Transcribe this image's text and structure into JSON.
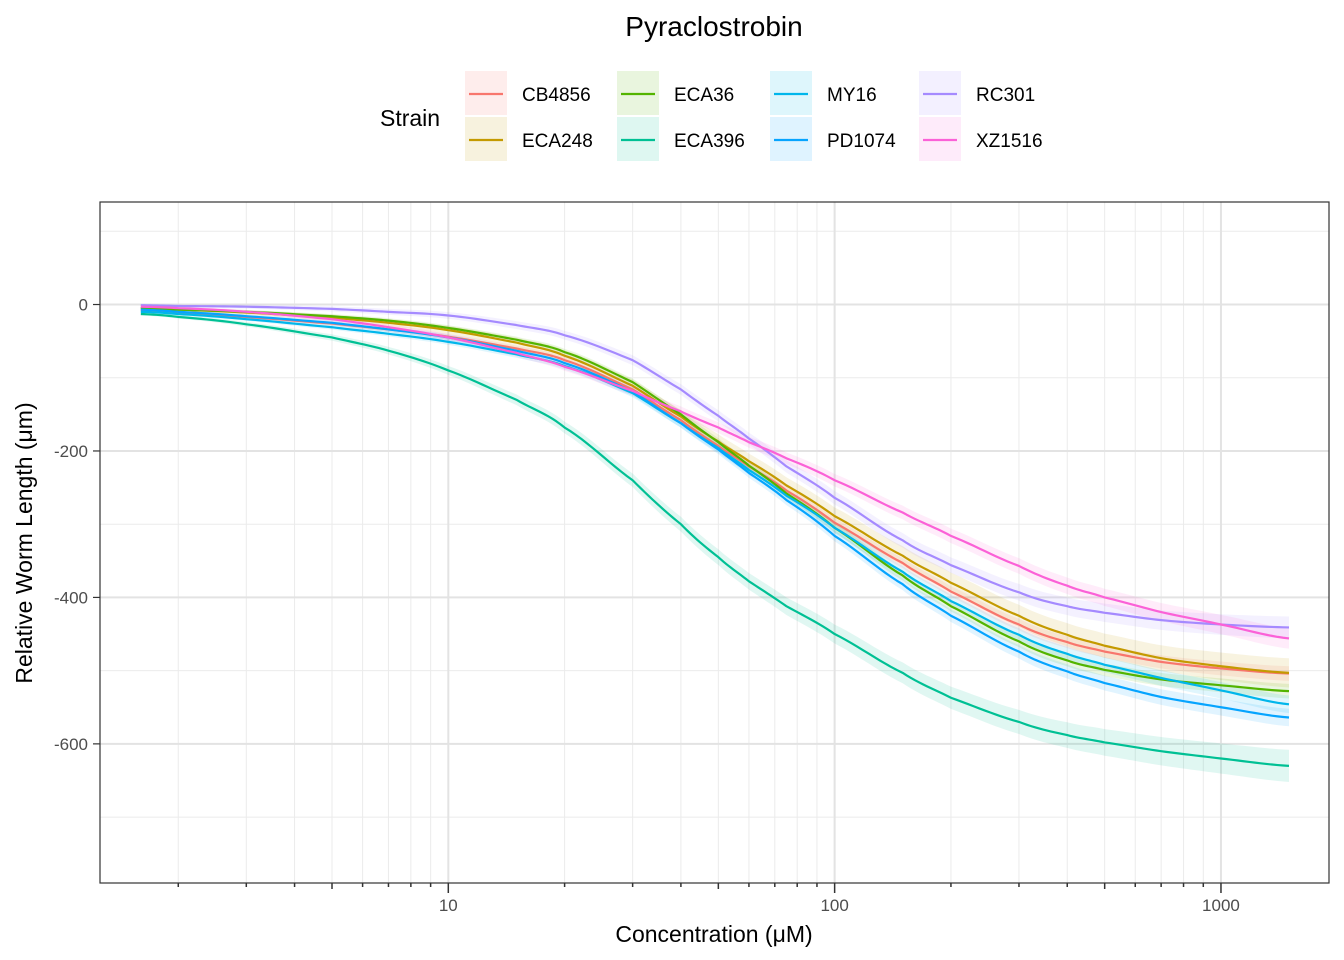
{
  "chart_data": {
    "type": "line",
    "title": "Pyraclostrobin",
    "xlabel": "Concentration (μM)",
    "ylabel": "Relative Worm Length (μm)",
    "x_scale": "log10",
    "xlim": [
      1.5,
      1500
    ],
    "ylim": [
      -790,
      140
    ],
    "x_ticks": [
      10,
      100,
      1000
    ],
    "x_tick_labels": [
      "10",
      "100",
      "1000"
    ],
    "y_ticks": [
      0,
      -200,
      -400,
      -600
    ],
    "y_tick_labels": [
      "0",
      "-200",
      "-400",
      "-600"
    ],
    "grid": true,
    "legend": {
      "title": "Strain",
      "position": "top",
      "ncol": 4
    },
    "x": [
      1.6,
      2,
      3,
      5,
      7,
      10,
      15,
      20,
      30,
      40,
      50,
      60,
      75,
      100,
      150,
      200,
      300,
      400,
      500,
      700,
      1000,
      1500
    ],
    "series": [
      {
        "name": "CB4856",
        "color": "#F8766D",
        "values": [
          -8,
          -11,
          -17,
          -26,
          -34,
          -44,
          -60,
          -76,
          -116,
          -158,
          -193,
          -221,
          -254,
          -298,
          -353,
          -392,
          -437,
          -461,
          -474,
          -488,
          -497,
          -504
        ],
        "ci_halfwidth": 10
      },
      {
        "name": "ECA248",
        "color": "#C49A00",
        "values": [
          -5,
          -7,
          -11,
          -18,
          -25,
          -35,
          -52,
          -70,
          -111,
          -153,
          -187,
          -214,
          -247,
          -289,
          -343,
          -380,
          -425,
          -451,
          -466,
          -483,
          -494,
          -503
        ],
        "ci_halfwidth": 20
      },
      {
        "name": "ECA36",
        "color": "#53B400",
        "values": [
          -5,
          -7,
          -10,
          -16,
          -22,
          -32,
          -48,
          -65,
          -106,
          -150,
          -188,
          -220,
          -258,
          -305,
          -370,
          -412,
          -460,
          -486,
          -499,
          -512,
          -520,
          -528
        ],
        "ci_halfwidth": 10
      },
      {
        "name": "ECA396",
        "color": "#00C094",
        "values": [
          -13,
          -17,
          -27,
          -45,
          -63,
          -90,
          -130,
          -168,
          -240,
          -300,
          -345,
          -378,
          -412,
          -450,
          -503,
          -537,
          -570,
          -588,
          -598,
          -610,
          -620,
          -630
        ],
        "ci_halfwidth": 22
      },
      {
        "name": "MY16",
        "color": "#00B6EB",
        "values": [
          -10,
          -13,
          -20,
          -31,
          -40,
          -51,
          -68,
          -84,
          -121,
          -162,
          -196,
          -226,
          -261,
          -305,
          -365,
          -405,
          -451,
          -477,
          -492,
          -510,
          -527,
          -546
        ],
        "ci_halfwidth": 12
      },
      {
        "name": "PD1074",
        "color": "#06A4FF",
        "values": [
          -7,
          -10,
          -16,
          -25,
          -34,
          -45,
          -63,
          -80,
          -119,
          -162,
          -198,
          -230,
          -267,
          -316,
          -382,
          -425,
          -474,
          -501,
          -517,
          -536,
          -550,
          -564
        ],
        "ci_halfwidth": 12
      },
      {
        "name": "RC301",
        "color": "#A58AFF",
        "values": [
          -1,
          -2,
          -3,
          -6,
          -10,
          -15,
          -28,
          -42,
          -76,
          -116,
          -152,
          -183,
          -221,
          -264,
          -322,
          -356,
          -393,
          -412,
          -421,
          -431,
          -437,
          -441
        ],
        "ci_halfwidth": 15
      },
      {
        "name": "XZ1516",
        "color": "#FB61D7",
        "values": [
          -3,
          -5,
          -10,
          -20,
          -31,
          -45,
          -66,
          -85,
          -118,
          -146,
          -168,
          -188,
          -210,
          -240,
          -284,
          -316,
          -357,
          -384,
          -400,
          -420,
          -437,
          -456
        ],
        "ci_halfwidth": 14
      }
    ]
  }
}
